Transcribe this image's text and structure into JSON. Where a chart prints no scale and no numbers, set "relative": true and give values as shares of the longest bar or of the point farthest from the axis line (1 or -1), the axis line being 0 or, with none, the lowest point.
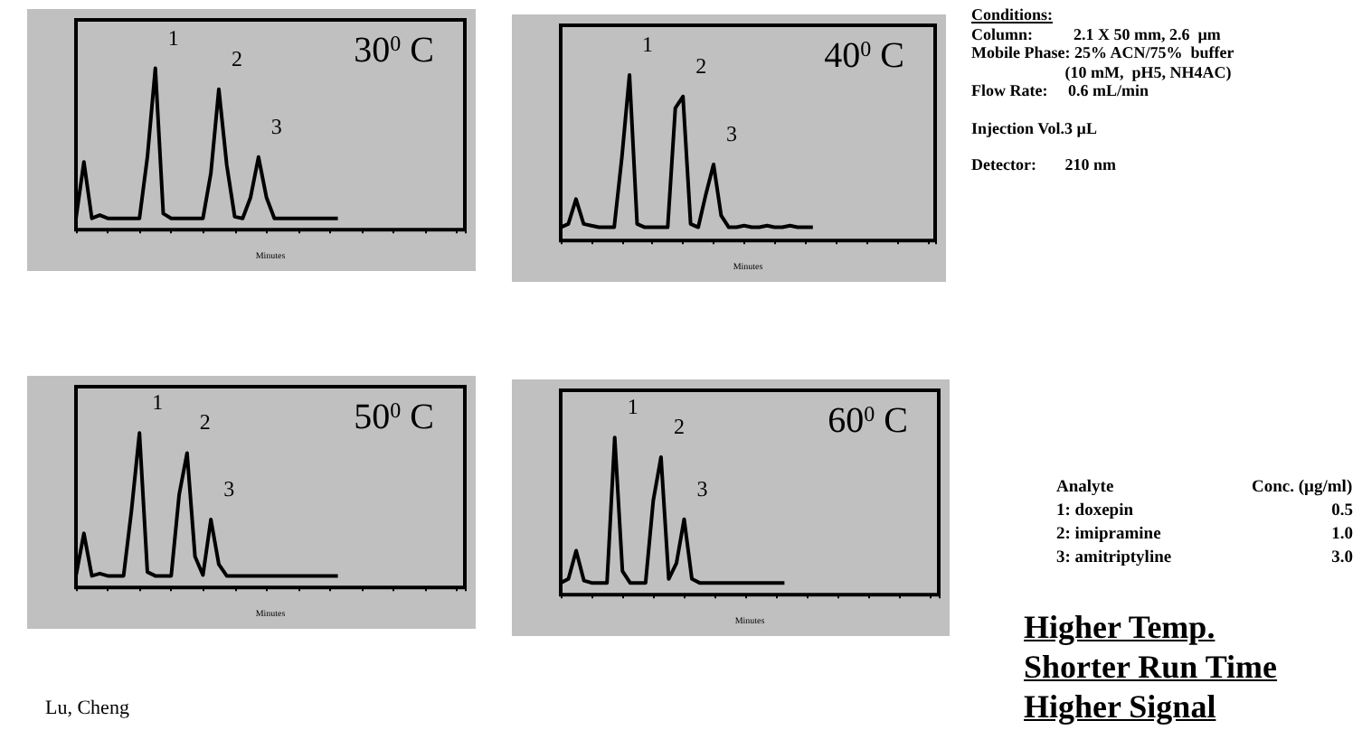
{
  "chart_data": [
    {
      "type": "line",
      "title": "30$^{0}$ C",
      "xlabel": "Minutes",
      "relative": true,
      "color": "#000000",
      "categories": [
        null,
        null,
        null,
        null,
        null,
        null,
        null,
        null,
        null,
        null,
        null,
        null,
        null,
        null,
        null,
        null,
        null,
        null,
        null,
        null,
        null,
        null,
        null,
        null,
        null,
        null,
        null,
        null,
        null,
        null,
        null,
        null,
        null,
        null,
        null,
        null,
        null,
        null,
        null,
        null,
        null,
        null,
        null,
        null,
        null,
        null,
        null,
        null,
        null,
        null
      ],
      "values": [
        0.07,
        0.42,
        0.07,
        0.09,
        0.07,
        0.07,
        0.07,
        0.07,
        0.07,
        0.45,
        1,
        0.1,
        0.07,
        0.07,
        0.07,
        0.07,
        0.07,
        0.35,
        0.87,
        0.4,
        0.08,
        0.07,
        0.2,
        0.45,
        0.2,
        0.07,
        0.07,
        0.07,
        0.07,
        0.07,
        0.07,
        0.07,
        0.07,
        0.07,
        null,
        null,
        null,
        null,
        null,
        null,
        null,
        null,
        null,
        null,
        null,
        null,
        null,
        null,
        null,
        null
      ],
      "annotations": [
        "1",
        "2",
        "3"
      ]
    },
    {
      "type": "line",
      "title": "40$^{0}$ C",
      "xlabel": "Minutes",
      "relative": true,
      "color": "#000000",
      "categories": [
        null,
        null,
        null,
        null,
        null,
        null,
        null,
        null,
        null,
        null,
        null,
        null,
        null,
        null,
        null,
        null,
        null,
        null,
        null,
        null,
        null,
        null,
        null,
        null,
        null,
        null,
        null,
        null,
        null,
        null,
        null,
        null,
        null,
        null,
        null,
        null,
        null,
        null,
        null,
        null,
        null,
        null,
        null,
        null,
        null,
        null,
        null,
        null,
        null,
        null
      ],
      "values": [
        0.08,
        0.1,
        0.25,
        0.1,
        0.09,
        0.08,
        0.08,
        0.08,
        0.5,
        1,
        0.1,
        0.08,
        0.08,
        0.08,
        0.08,
        0.8,
        0.87,
        0.1,
        0.08,
        0.28,
        0.46,
        0.15,
        0.08,
        0.08,
        0.09,
        0.08,
        0.08,
        0.09,
        0.08,
        0.08,
        0.09,
        0.08,
        0.08,
        0.08,
        null,
        null,
        null,
        null,
        null,
        null,
        null,
        null,
        null,
        null,
        null,
        null,
        null,
        null,
        null,
        null
      ],
      "annotations": [
        "1",
        "2",
        "3"
      ]
    },
    {
      "type": "line",
      "title": "50$^{0}$ C",
      "xlabel": "Minutes",
      "relative": true,
      "color": "#000000",
      "categories": [
        null,
        null,
        null,
        null,
        null,
        null,
        null,
        null,
        null,
        null,
        null,
        null,
        null,
        null,
        null,
        null,
        null,
        null,
        null,
        null,
        null,
        null,
        null,
        null,
        null,
        null,
        null,
        null,
        null,
        null,
        null,
        null,
        null,
        null,
        null,
        null,
        null,
        null,
        null,
        null,
        null,
        null,
        null,
        null,
        null,
        null,
        null,
        null,
        null,
        null
      ],
      "values": [
        0.075,
        0.35,
        0.075,
        0.09,
        0.075,
        0.075,
        0.075,
        0.5,
        1,
        0.1,
        0.075,
        0.075,
        0.075,
        0.6,
        0.87,
        0.2,
        0.08,
        0.44,
        0.15,
        0.075,
        0.075,
        0.075,
        0.075,
        0.075,
        0.075,
        0.075,
        0.075,
        0.075,
        0.075,
        0.075,
        0.075,
        0.075,
        0.075,
        0.075,
        null,
        null,
        null,
        null,
        null,
        null,
        null,
        null,
        null,
        null,
        null,
        null,
        null,
        null,
        null,
        null
      ],
      "annotations": [
        "1",
        "2",
        "3",
        "Lu, Cheng"
      ]
    },
    {
      "type": "line",
      "title": "60$^{0}$ C",
      "xlabel": "Minutes",
      "relative": true,
      "color": "#000000",
      "categories": [
        null,
        null,
        null,
        null,
        null,
        null,
        null,
        null,
        null,
        null,
        null,
        null,
        null,
        null,
        null,
        null,
        null,
        null,
        null,
        null,
        null,
        null,
        null,
        null,
        null,
        null,
        null,
        null,
        null,
        null,
        null,
        null,
        null,
        null,
        null,
        null,
        null,
        null,
        null,
        null,
        null,
        null,
        null,
        null,
        null,
        null,
        null,
        null,
        null,
        null
      ],
      "values": [
        0.075,
        0.1,
        0.28,
        0.09,
        0.075,
        0.075,
        0.075,
        1,
        0.15,
        0.075,
        0.075,
        0.075,
        0.6,
        0.875,
        0.1,
        0.2,
        0.48,
        0.1,
        0.075,
        0.075,
        0.075,
        0.075,
        0.075,
        0.075,
        0.075,
        0.075,
        0.075,
        0.075,
        0.075,
        0.075,
        null,
        null,
        null,
        null,
        null,
        null,
        null,
        null,
        null,
        null,
        null,
        null,
        null,
        null,
        null,
        null,
        null,
        null,
        null,
        null
      ],
      "annotations": [
        "1",
        "2",
        "3"
      ]
    },
    {
      "type": "other",
      "title": "Conditions:",
      "annotations": [
        "Column:          2.1 X 50 mm, 2.6  µm",
        "Mobile Phase: 25% ACN/75%  buffer",
        "                       (10 mM,  pH5, NH4AC)",
        "Flow Rate:     0.6 mL/min",
        "Injection Vol.3 µL",
        "Detector:       210 nm"
      ]
    },
    {
      "type": "other",
      "annotations": [
        "Analyte",
        "Conc. (µg/ml)",
        "1: doxepin",
        "0.5",
        "2: imipramine",
        "1.0",
        "3: amitriptyline",
        "3.0"
      ]
    },
    {
      "type": "other",
      "annotations": [
        "Higher Temp.",
        "Shorter Run Time",
        "Higher Signal"
      ]
    }
  ]
}
